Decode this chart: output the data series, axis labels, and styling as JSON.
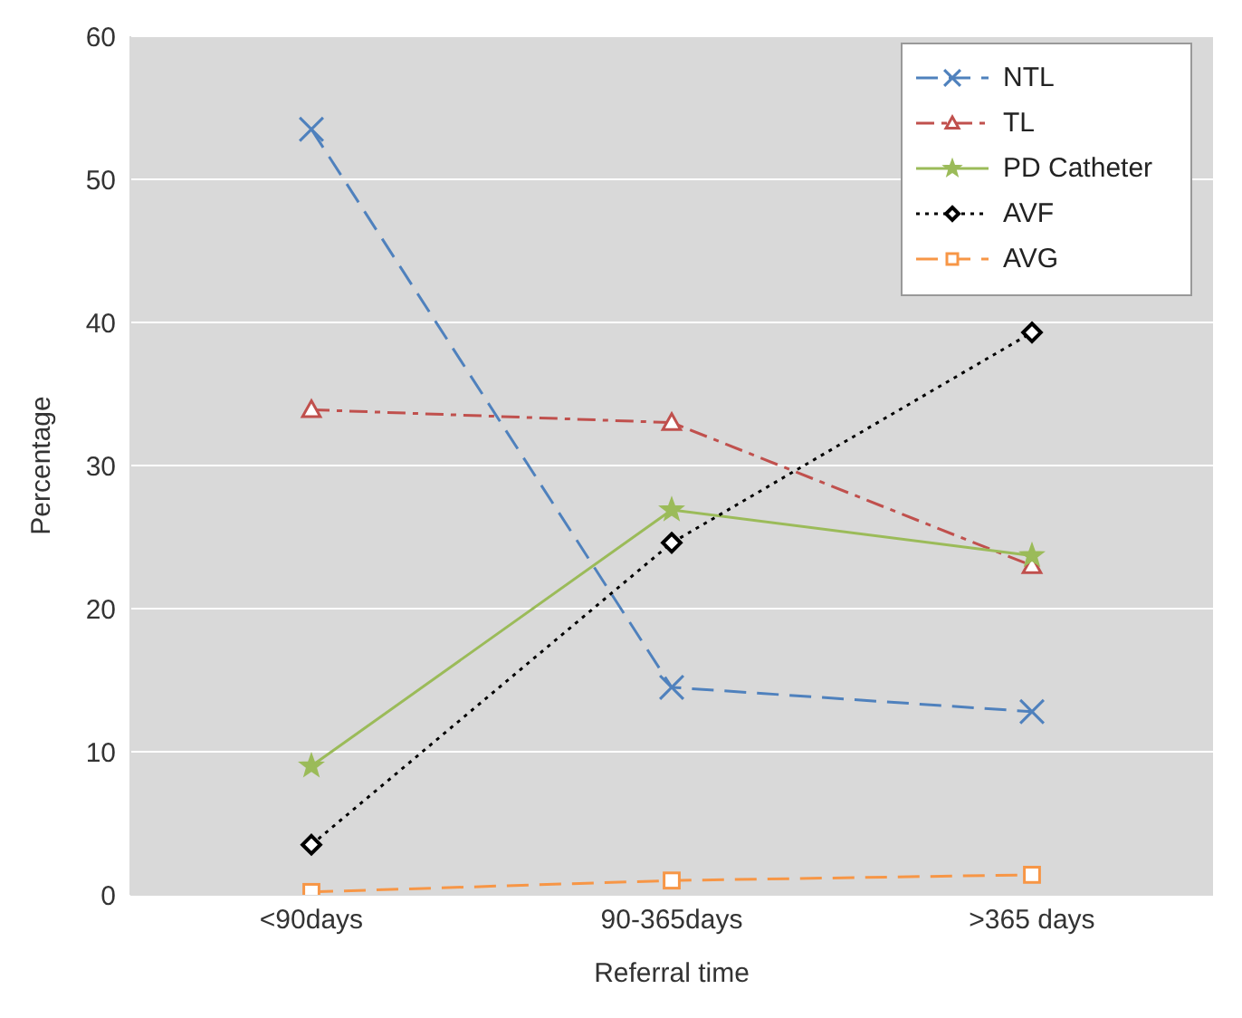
{
  "chart_data": {
    "type": "line",
    "xlabel": "Referral time",
    "ylabel": "Percentage",
    "categories": [
      "<90days",
      "90-365days",
      ">365 days"
    ],
    "series": [
      {
        "name": "NTL",
        "color": "#4f81bd",
        "values": [
          53.5,
          14.5,
          12.8
        ],
        "marker": "cross",
        "line_style": "dashed"
      },
      {
        "name": "TL",
        "color": "#c0504d",
        "values": [
          33.9,
          33.0,
          23.0
        ],
        "marker": "triangle",
        "line_style": "dashdot"
      },
      {
        "name": "PD Catheter",
        "color": "#9bbb59",
        "values": [
          9.0,
          26.9,
          23.7
        ],
        "marker": "star",
        "line_style": "solid"
      },
      {
        "name": "AVF",
        "color": "#000000",
        "values": [
          3.5,
          24.6,
          39.3
        ],
        "marker": "diamond",
        "line_style": "dotted"
      },
      {
        "name": "AVG",
        "color": "#f79646",
        "values": [
          0.2,
          1.0,
          1.4
        ],
        "marker": "square",
        "line_style": "dashed"
      }
    ],
    "ylim": [
      0,
      60
    ],
    "yticks": [
      0,
      10,
      20,
      30,
      40,
      50,
      60
    ],
    "grid": "y",
    "legend": "top right"
  }
}
